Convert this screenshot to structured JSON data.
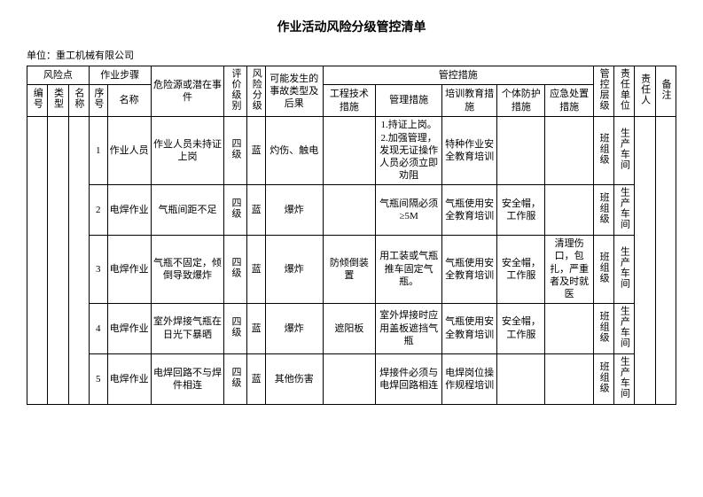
{
  "title": "作业活动风险分级管控清单",
  "unit_label": "单位：",
  "unit_name": "重工机械有限公司",
  "headers": {
    "risk_point": "风险点",
    "step": "作业步骤",
    "no": "编号",
    "type": "类型",
    "name": "名称",
    "seq": "序号",
    "step_name": "名称",
    "hazard": "危险源或潜在事件",
    "eval_level": "评价级别",
    "risk_level": "风险分级",
    "consequence": "可能发生的事故类型及后果",
    "control": "管控措施",
    "eng": "工程技术措施",
    "mgmt": "管理措施",
    "train": "培训教育措施",
    "ppe": "个体防护措施",
    "emerg": "应急处置措施",
    "ctrl_level": "管控层级",
    "resp_unit": "责任单位",
    "resp_person": "责任人",
    "note": "备注"
  },
  "rows": [
    {
      "seq": "1",
      "step_name": "作业人员",
      "hazard": "作业人员未持证上岗",
      "eval": "四级",
      "risk": "蓝",
      "consq": "灼伤、触电",
      "eng": "",
      "mgmt": "1.持证上岗。2.加强管理，发现无证操作人员必须立即劝阻",
      "train": "特种作业安全教育培训",
      "ppe": "",
      "emerg": "",
      "ctrl": "班组级",
      "unit": "生产车间"
    },
    {
      "seq": "2",
      "step_name": "电焊作业",
      "hazard": "气瓶间距不足",
      "eval": "四级",
      "risk": "蓝",
      "consq": "爆炸",
      "eng": "",
      "mgmt": "气瓶间隔必须≥5M",
      "train": "气瓶使用安全教育培训",
      "ppe": "安全帽，工作服",
      "emerg": "",
      "ctrl": "班组级",
      "unit": "生产车间"
    },
    {
      "seq": "3",
      "step_name": "电焊作业",
      "hazard": "气瓶不固定，倾倒导致爆炸",
      "eval": "四级",
      "risk": "蓝",
      "consq": "爆炸",
      "eng": "防倾倒装置",
      "mgmt": "用工装或气瓶推车固定气瓶。",
      "train": "气瓶使用安全教育培训",
      "ppe": "安全帽，工作服",
      "emerg": "清理伤口，包扎，严重者及时就医",
      "ctrl": "班组级",
      "unit": "生产车间"
    },
    {
      "seq": "4",
      "step_name": "电焊作业",
      "hazard": "室外焊接气瓶在日光下暴晒",
      "eval": "四级",
      "risk": "蓝",
      "consq": "爆炸",
      "eng": "遮阳板",
      "mgmt": "室外焊接时应用盖板遮挡气瓶",
      "train": "气瓶使用安全教育培训",
      "ppe": "安全帽，工作服",
      "emerg": "",
      "ctrl": "班组级",
      "unit": "生产车间"
    },
    {
      "seq": "5",
      "step_name": "电焊作业",
      "hazard": "电焊回路不与焊件相连",
      "eval": "四级",
      "risk": "蓝",
      "consq": "其他伤害",
      "eng": "",
      "mgmt": "焊接件必须与电焊回路相连",
      "train": "电焊岗位操作规程培训",
      "ppe": "",
      "emerg": "",
      "ctrl": "班组级",
      "unit": "生产车间"
    }
  ]
}
